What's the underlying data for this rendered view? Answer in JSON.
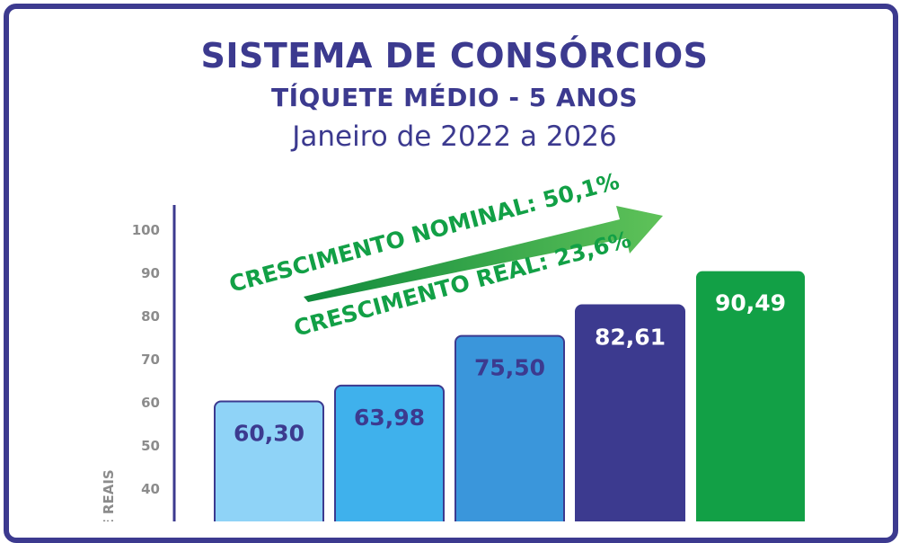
{
  "header": {
    "title": "SISTEMA DE CONSÓRCIOS",
    "subtitle": "TÍQUETE MÉDIO - 5 ANOS",
    "period": "Janeiro de 2022 a 2026"
  },
  "chart_data": {
    "type": "bar",
    "values": [
      60.3,
      63.98,
      75.5,
      82.61,
      90.49
    ],
    "data_labels": [
      "60,30",
      "63,98",
      "75,50",
      "82,61",
      "90,49"
    ],
    "bar_colors": [
      "#8fd3f7",
      "#3fb1ec",
      "#3a96db",
      "#3c3a8f",
      "#12a046"
    ],
    "label_colors": [
      "#3c3a8f",
      "#3c3a8f",
      "#3c3a8f",
      "#ffffff",
      "#ffffff"
    ],
    "y_ticks": [
      "40",
      "50",
      "60",
      "70",
      "80",
      "90",
      "100"
    ],
    "ylabel": "DE REAIS",
    "annotations": {
      "nominal": "CRESCIMENTO NOMINAL: 50,1%",
      "real": "CRESCIMENTO REAL: 23,6%"
    },
    "grid": false
  },
  "colors": {
    "primary": "#3c3a8f",
    "growth": "#12a046",
    "axis_text": "#8c8c8c"
  }
}
